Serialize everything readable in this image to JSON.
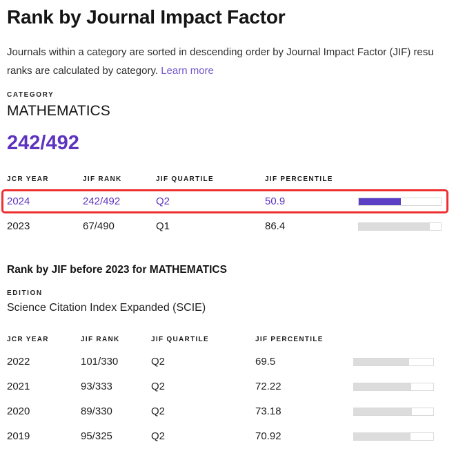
{
  "page": {
    "title": "Rank by Journal Impact Factor",
    "description_line1": "Journals within a category are sorted in descending order by Journal Impact Factor (JIF) resu",
    "description_line2": "ranks are calculated by category.",
    "learn_more_label": "Learn more"
  },
  "category": {
    "label": "CATEGORY",
    "name": "MATHEMATICS",
    "rank": "242/492"
  },
  "columns": {
    "year": "JCR YEAR",
    "rank": "JIF RANK",
    "quartile": "JIF QUARTILE",
    "percentile": "JIF PERCENTILE"
  },
  "current_table": {
    "rows": [
      {
        "year": "2024",
        "rank": "242/492",
        "quartile": "Q2",
        "percentile": "50.9",
        "percent": 50.9,
        "highlighted": true
      },
      {
        "year": "2023",
        "rank": "67/490",
        "quartile": "Q1",
        "percentile": "86.4",
        "percent": 86.4,
        "highlighted": false
      }
    ]
  },
  "history": {
    "heading": "Rank by JIF before 2023 for MATHEMATICS",
    "edition_label": "EDITION",
    "edition_name": "Science Citation Index Expanded (SCIE)"
  },
  "history_table": {
    "rows": [
      {
        "year": "2022",
        "rank": "101/330",
        "quartile": "Q2",
        "percentile": "69.5",
        "percent": 69.5
      },
      {
        "year": "2021",
        "rank": "93/333",
        "quartile": "Q2",
        "percentile": "72.22",
        "percent": 72.22
      },
      {
        "year": "2020",
        "rank": "89/330",
        "quartile": "Q2",
        "percentile": "73.18",
        "percent": 73.18
      },
      {
        "year": "2019",
        "rank": "95/325",
        "quartile": "Q2",
        "percentile": "70.92",
        "percent": 70.92
      }
    ]
  },
  "colors": {
    "accent_purple": "#5e33bf",
    "bar_purple": "#5b3fc4",
    "bar_gray": "#dcdcdc",
    "highlight_red": "#ee2f2f",
    "link_purple": "#7357c9"
  }
}
